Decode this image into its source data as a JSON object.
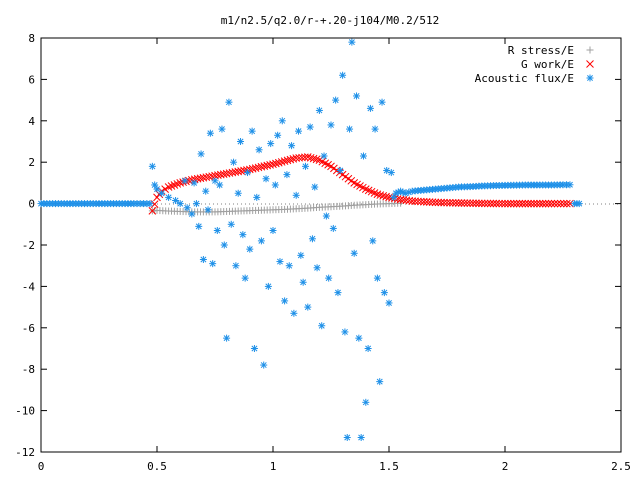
{
  "chart_data": {
    "type": "scatter",
    "title": "m1/n2.5/q2.0/r-+.20-j104/M0.2/512",
    "xlabel": "",
    "ylabel": "",
    "xlim": [
      0,
      2.5
    ],
    "ylim": [
      -12,
      8
    ],
    "x_ticks": [
      0,
      0.5,
      1,
      1.5,
      2,
      2.5
    ],
    "x_tick_labels": [
      "0",
      "0.5",
      "1",
      "1.5",
      "2",
      "2.5"
    ],
    "y_ticks": [
      -12,
      -10,
      -8,
      -6,
      -4,
      -2,
      0,
      2,
      4,
      6,
      8
    ],
    "y_tick_labels": [
      "-12",
      "-10",
      "-8",
      "-6",
      "-4",
      "-2",
      "0",
      "2",
      "4",
      "6",
      "8"
    ],
    "grid": false,
    "legend_position": "top-right",
    "series": [
      {
        "name": "R stress/E",
        "marker": "plus",
        "color": "#a0a0a0",
        "points": [
          [
            0.48,
            -0.35
          ],
          [
            0.5,
            -0.33
          ],
          [
            0.55,
            -0.36
          ],
          [
            0.6,
            -0.38
          ],
          [
            0.65,
            -0.4
          ],
          [
            0.7,
            -0.4
          ],
          [
            0.75,
            -0.4
          ],
          [
            0.8,
            -0.38
          ],
          [
            0.85,
            -0.36
          ],
          [
            0.9,
            -0.34
          ],
          [
            0.95,
            -0.32
          ],
          [
            1.0,
            -0.3
          ],
          [
            1.05,
            -0.28
          ],
          [
            1.1,
            -0.25
          ],
          [
            1.15,
            -0.22
          ],
          [
            1.2,
            -0.18
          ],
          [
            1.25,
            -0.15
          ],
          [
            1.3,
            -0.12
          ],
          [
            1.35,
            -0.08
          ],
          [
            1.4,
            -0.05
          ],
          [
            1.45,
            -0.02
          ],
          [
            1.5,
            0.0
          ],
          [
            1.55,
            0.02
          ]
        ]
      },
      {
        "name": "G work/E",
        "marker": "cross",
        "color": "#ff0000",
        "points": [
          [
            0.48,
            -0.35
          ],
          [
            0.5,
            0.3
          ],
          [
            0.52,
            0.6
          ],
          [
            0.55,
            0.8
          ],
          [
            0.6,
            1.0
          ],
          [
            0.65,
            1.15
          ],
          [
            0.7,
            1.25
          ],
          [
            0.75,
            1.35
          ],
          [
            0.8,
            1.45
          ],
          [
            0.85,
            1.55
          ],
          [
            0.9,
            1.65
          ],
          [
            0.95,
            1.78
          ],
          [
            1.0,
            1.9
          ],
          [
            1.05,
            2.05
          ],
          [
            1.1,
            2.2
          ],
          [
            1.15,
            2.25
          ],
          [
            1.2,
            2.1
          ],
          [
            1.25,
            1.8
          ],
          [
            1.3,
            1.4
          ],
          [
            1.35,
            1.0
          ],
          [
            1.4,
            0.7
          ],
          [
            1.45,
            0.45
          ],
          [
            1.5,
            0.3
          ],
          [
            1.55,
            0.2
          ],
          [
            1.6,
            0.12
          ],
          [
            1.7,
            0.06
          ],
          [
            1.8,
            0.03
          ],
          [
            1.9,
            0.01
          ],
          [
            2.0,
            0.0
          ],
          [
            2.1,
            0.0
          ],
          [
            2.2,
            0.0
          ],
          [
            2.28,
            0.0
          ]
        ]
      },
      {
        "name": "Acoustic flux/E",
        "marker": "star",
        "color": "#1e90e8",
        "points": [
          [
            0.0,
            0.0
          ],
          [
            0.1,
            0.0
          ],
          [
            0.2,
            0.0
          ],
          [
            0.3,
            0.0
          ],
          [
            0.4,
            0.0
          ],
          [
            0.47,
            0.0
          ],
          [
            0.48,
            1.8
          ],
          [
            0.49,
            0.9
          ],
          [
            0.5,
            0.7
          ],
          [
            0.52,
            0.5
          ],
          [
            0.55,
            0.3
          ],
          [
            0.58,
            0.15
          ],
          [
            0.6,
            0.0
          ],
          [
            0.62,
            1.1
          ],
          [
            0.63,
            -0.2
          ],
          [
            0.65,
            -0.5
          ],
          [
            0.66,
            1.0
          ],
          [
            0.67,
            0.0
          ],
          [
            0.68,
            -1.1
          ],
          [
            0.69,
            2.4
          ],
          [
            0.7,
            -2.7
          ],
          [
            0.71,
            0.6
          ],
          [
            0.72,
            -0.3
          ],
          [
            0.73,
            3.4
          ],
          [
            0.74,
            -2.9
          ],
          [
            0.75,
            1.1
          ],
          [
            0.76,
            -1.3
          ],
          [
            0.77,
            0.9
          ],
          [
            0.78,
            3.6
          ],
          [
            0.79,
            -2.0
          ],
          [
            0.8,
            -6.5
          ],
          [
            0.81,
            4.9
          ],
          [
            0.82,
            -1.0
          ],
          [
            0.83,
            2.0
          ],
          [
            0.84,
            -3.0
          ],
          [
            0.85,
            0.5
          ],
          [
            0.86,
            3.0
          ],
          [
            0.87,
            -1.5
          ],
          [
            0.88,
            -3.6
          ],
          [
            0.89,
            1.5
          ],
          [
            0.9,
            -2.2
          ],
          [
            0.91,
            3.5
          ],
          [
            0.92,
            -7.0
          ],
          [
            0.93,
            0.3
          ],
          [
            0.94,
            2.6
          ],
          [
            0.95,
            -1.8
          ],
          [
            0.96,
            -7.8
          ],
          [
            0.97,
            1.2
          ],
          [
            0.98,
            -4.0
          ],
          [
            0.99,
            2.9
          ],
          [
            1.0,
            -1.3
          ],
          [
            1.01,
            0.9
          ],
          [
            1.02,
            3.3
          ],
          [
            1.03,
            -2.8
          ],
          [
            1.04,
            4.0
          ],
          [
            1.05,
            -4.7
          ],
          [
            1.06,
            1.4
          ],
          [
            1.07,
            -3.0
          ],
          [
            1.08,
            2.8
          ],
          [
            1.09,
            -5.3
          ],
          [
            1.1,
            0.4
          ],
          [
            1.11,
            3.5
          ],
          [
            1.12,
            -2.5
          ],
          [
            1.13,
            -3.8
          ],
          [
            1.14,
            1.8
          ],
          [
            1.15,
            -5.0
          ],
          [
            1.16,
            3.7
          ],
          [
            1.17,
            -1.7
          ],
          [
            1.18,
            0.8
          ],
          [
            1.19,
            -3.1
          ],
          [
            1.2,
            4.5
          ],
          [
            1.21,
            -5.9
          ],
          [
            1.22,
            2.3
          ],
          [
            1.23,
            -0.6
          ],
          [
            1.24,
            -3.6
          ],
          [
            1.25,
            3.8
          ],
          [
            1.26,
            -1.2
          ],
          [
            1.27,
            5.0
          ],
          [
            1.28,
            -4.3
          ],
          [
            1.29,
            1.6
          ],
          [
            1.3,
            6.2
          ],
          [
            1.31,
            -6.2
          ],
          [
            1.32,
            -11.3
          ],
          [
            1.33,
            3.6
          ],
          [
            1.34,
            7.8
          ],
          [
            1.35,
            -2.4
          ],
          [
            1.36,
            5.2
          ],
          [
            1.37,
            -6.5
          ],
          [
            1.38,
            -11.3
          ],
          [
            1.39,
            2.3
          ],
          [
            1.4,
            -9.6
          ],
          [
            1.41,
            -7.0
          ],
          [
            1.42,
            4.6
          ],
          [
            1.43,
            -1.8
          ],
          [
            1.44,
            3.6
          ],
          [
            1.45,
            -3.6
          ],
          [
            1.46,
            -8.6
          ],
          [
            1.47,
            4.9
          ],
          [
            1.48,
            -4.3
          ],
          [
            1.49,
            1.6
          ],
          [
            1.5,
            -4.8
          ],
          [
            1.51,
            1.5
          ],
          [
            1.52,
            0.3
          ],
          [
            1.53,
            0.5
          ],
          [
            1.55,
            0.6
          ],
          [
            1.57,
            0.5
          ],
          [
            1.6,
            0.6
          ],
          [
            1.65,
            0.65
          ],
          [
            1.7,
            0.7
          ],
          [
            1.75,
            0.75
          ],
          [
            1.8,
            0.8
          ],
          [
            1.85,
            0.82
          ],
          [
            1.9,
            0.85
          ],
          [
            1.95,
            0.87
          ],
          [
            2.0,
            0.88
          ],
          [
            2.05,
            0.89
          ],
          [
            2.1,
            0.9
          ],
          [
            2.15,
            0.9
          ],
          [
            2.2,
            0.9
          ],
          [
            2.25,
            0.91
          ],
          [
            2.28,
            0.91
          ],
          [
            2.3,
            0.0
          ],
          [
            2.32,
            0.0
          ]
        ]
      }
    ]
  }
}
